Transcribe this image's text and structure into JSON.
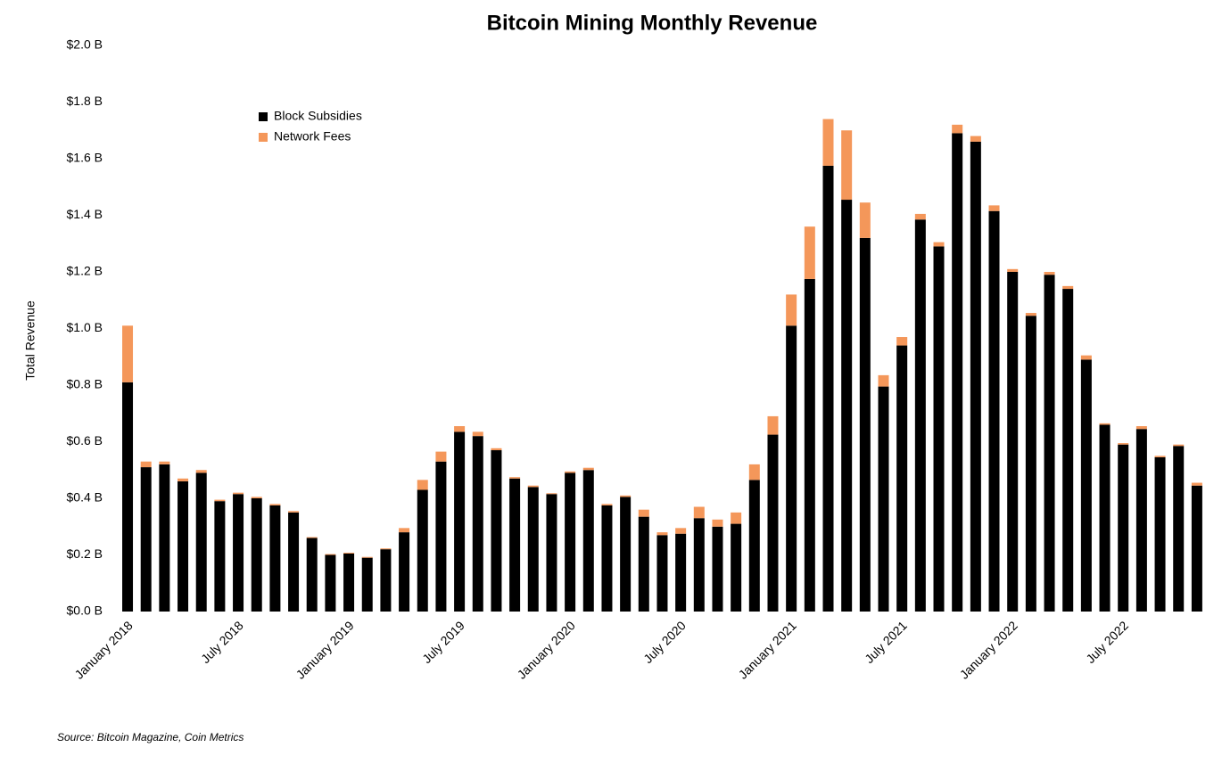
{
  "chart_data": {
    "type": "stacked_bar",
    "title": "Bitcoin Mining Monthly Revenue",
    "y_label": "Total Revenue",
    "source": "Source: Bitcoin Magazine, Coin Metrics",
    "categories": [
      "January 2018",
      null,
      null,
      null,
      null,
      null,
      "July 2018",
      null,
      null,
      null,
      null,
      null,
      "January 2019",
      null,
      null,
      null,
      null,
      null,
      "July 2019",
      null,
      null,
      null,
      null,
      null,
      "January 2020",
      null,
      null,
      null,
      null,
      null,
      "July 2020",
      null,
      null,
      null,
      null,
      null,
      "January 2021",
      null,
      null,
      null,
      null,
      null,
      "July 2021",
      null,
      null,
      null,
      null,
      null,
      "January 2022",
      null,
      null,
      null,
      null,
      null,
      "July 2022",
      null,
      null,
      null,
      null
    ],
    "series": [
      {
        "name": "Block Subsidies",
        "color": "#000000",
        "values": [
          0.81,
          0.51,
          0.52,
          0.46,
          0.49,
          0.39,
          0.415,
          0.4,
          0.375,
          0.35,
          0.26,
          0.2,
          0.205,
          0.19,
          0.22,
          0.28,
          0.43,
          0.53,
          0.635,
          0.62,
          0.57,
          0.47,
          0.44,
          0.415,
          0.49,
          0.5,
          0.375,
          0.405,
          0.335,
          0.27,
          0.275,
          0.33,
          0.3,
          0.31,
          0.465,
          0.625,
          1.01,
          1.175,
          1.575,
          1.455,
          1.32,
          0.795,
          0.94,
          1.385,
          1.29,
          1.69,
          1.66,
          1.415,
          1.2,
          1.045,
          1.19,
          1.14,
          0.89,
          0.66,
          0.59,
          0.645,
          0.545,
          0.585,
          0.445
        ]
      },
      {
        "name": "Network Fees",
        "color": "#f4975a",
        "values": [
          0.2,
          0.02,
          0.01,
          0.01,
          0.01,
          0.005,
          0.005,
          0.005,
          0.005,
          0.005,
          0.003,
          0.003,
          0.003,
          0.003,
          0.003,
          0.015,
          0.035,
          0.035,
          0.02,
          0.015,
          0.007,
          0.005,
          0.005,
          0.003,
          0.005,
          0.008,
          0.005,
          0.005,
          0.025,
          0.01,
          0.02,
          0.04,
          0.025,
          0.04,
          0.055,
          0.065,
          0.11,
          0.185,
          0.165,
          0.245,
          0.125,
          0.04,
          0.03,
          0.02,
          0.015,
          0.03,
          0.02,
          0.02,
          0.01,
          0.01,
          0.01,
          0.01,
          0.015,
          0.005,
          0.005,
          0.01,
          0.005,
          0.005,
          0.01
        ]
      }
    ],
    "ylim": [
      0,
      2.0
    ],
    "yticks": [
      {
        "value": 0,
        "label": "$0.0 B"
      },
      {
        "value": 0.2,
        "label": "$0.2 B"
      },
      {
        "value": 0.4,
        "label": "$0.4 B"
      },
      {
        "value": 0.6,
        "label": "$0.6 B"
      },
      {
        "value": 0.8,
        "label": "$0.8 B"
      },
      {
        "value": 1.0,
        "label": "$1.0 B"
      },
      {
        "value": 1.2,
        "label": "$1.2 B"
      },
      {
        "value": 1.4,
        "label": "$1.4 B"
      },
      {
        "value": 1.6,
        "label": "$1.6 B"
      },
      {
        "value": 1.8,
        "label": "$1.8 B"
      },
      {
        "value": 2.0,
        "label": "$2.0 B"
      }
    ],
    "grid": false,
    "legend": "top-left"
  }
}
